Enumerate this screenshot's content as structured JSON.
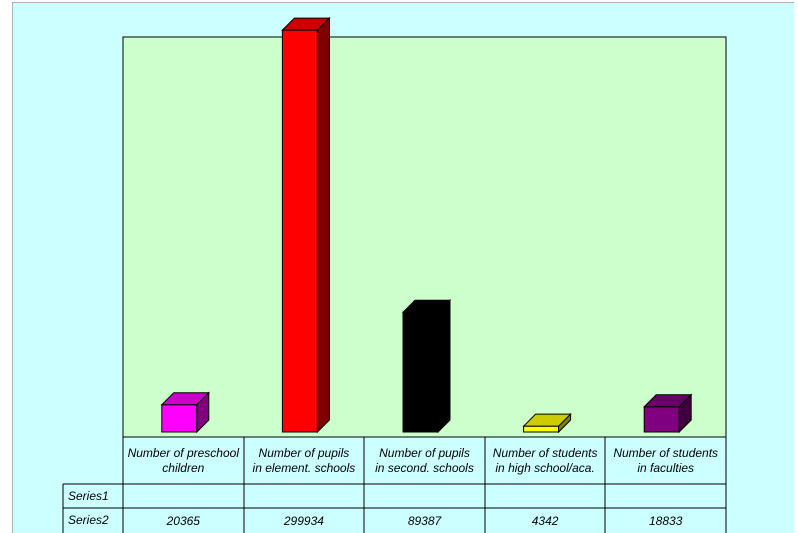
{
  "chart_data": {
    "type": "bar",
    "categories": [
      [
        "Number of preschool",
        "children"
      ],
      [
        "Number of pupils",
        "in element. schools"
      ],
      [
        "Number of pupils",
        "in second. schools"
      ],
      [
        "Number of students",
        "in high school/aca."
      ],
      [
        "Number of students",
        "in faculties"
      ]
    ],
    "series": [
      {
        "name": "Series1",
        "values": [
          null,
          null,
          null,
          null,
          null
        ]
      },
      {
        "name": "Series2",
        "values": [
          20365,
          299934,
          89387,
          4342,
          18833
        ]
      }
    ],
    "value_labels": [
      "20365",
      "299934",
      "89387",
      "4342",
      "18833"
    ],
    "bar_colors": [
      "#ff00ff",
      "#ff0000",
      "#000000",
      "#ffff00",
      "#800080"
    ],
    "plot_background": "#ccffcc",
    "chart_background": "#ccffff",
    "ylim": [
      0,
      300000
    ],
    "grid": false,
    "legend": "data-table",
    "bar_style": "3d"
  }
}
